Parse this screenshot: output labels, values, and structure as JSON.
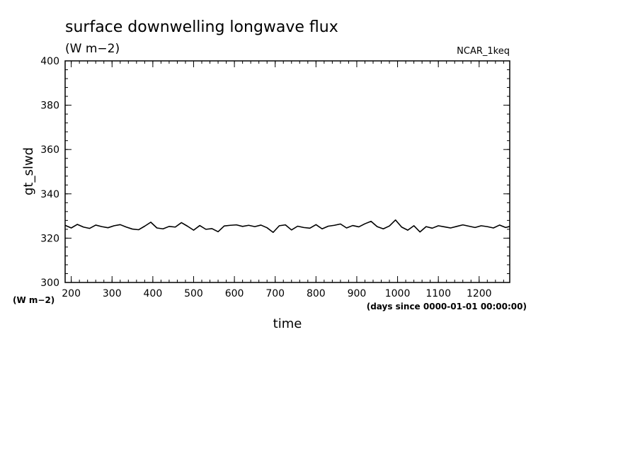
{
  "chart_data": {
    "type": "line",
    "title": "surface downwelling longwave flux",
    "subtitle": "(W m−2)",
    "run_label": "NCAR_1keq",
    "xlabel": "time",
    "x_units": "(days since 0000-01-01 00:00:00)",
    "ylabel": "gt_slwd",
    "y_units": "(W m−2)",
    "xlim": [
      185,
      1275
    ],
    "ylim": [
      300,
      400
    ],
    "x_ticks": [
      200,
      300,
      400,
      500,
      600,
      700,
      800,
      900,
      1000,
      1100,
      1200
    ],
    "y_ticks": [
      300,
      320,
      340,
      360,
      380,
      400
    ],
    "grid": false,
    "series": [
      {
        "color": "#000000",
        "x": [
          185,
          200,
          215,
          230,
          245,
          260,
          275,
          290,
          305,
          320,
          335,
          350,
          365,
          380,
          395,
          410,
          425,
          440,
          455,
          470,
          485,
          500,
          515,
          530,
          545,
          560,
          575,
          590,
          605,
          620,
          635,
          650,
          665,
          680,
          695,
          710,
          725,
          740,
          755,
          770,
          785,
          800,
          815,
          830,
          845,
          860,
          875,
          890,
          905,
          920,
          935,
          950,
          965,
          980,
          995,
          1010,
          1025,
          1040,
          1055,
          1070,
          1085,
          1100,
          1115,
          1130,
          1145,
          1160,
          1175,
          1190,
          1205,
          1220,
          1235,
          1250,
          1265,
          1275
        ],
        "y": [
          325.8,
          324.6,
          326.2,
          325.0,
          324.4,
          325.9,
          325.2,
          324.7,
          325.6,
          326.1,
          325.0,
          324.1,
          323.8,
          325.4,
          327.2,
          324.6,
          324.2,
          325.3,
          325.0,
          327.0,
          325.4,
          323.6,
          325.7,
          324.0,
          324.3,
          322.9,
          325.5,
          325.8,
          326.0,
          325.3,
          325.8,
          325.2,
          325.9,
          324.7,
          322.6,
          325.6,
          326.0,
          323.7,
          325.4,
          324.8,
          324.5,
          326.1,
          324.2,
          325.4,
          325.8,
          326.4,
          324.6,
          325.7,
          325.1,
          326.5,
          327.6,
          325.2,
          324.2,
          325.5,
          328.2,
          325.0,
          323.6,
          325.6,
          322.8,
          325.2,
          324.5,
          325.6,
          325.1,
          324.6,
          325.3,
          326.0,
          325.4,
          324.8,
          325.6,
          325.2,
          324.6,
          325.9,
          324.8,
          325.3
        ]
      }
    ]
  }
}
